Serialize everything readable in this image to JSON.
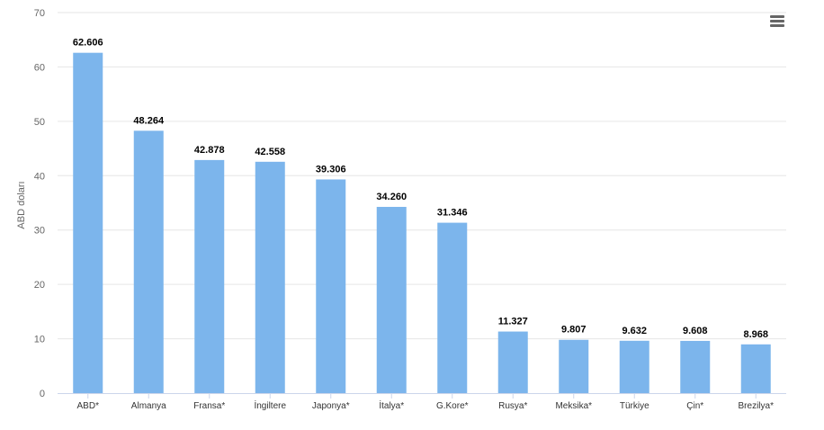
{
  "chart_data": {
    "type": "bar",
    "ylabel": "ABD doları",
    "ylim": [
      0,
      70
    ],
    "yticks": [
      0,
      10,
      20,
      30,
      40,
      50,
      60,
      70
    ],
    "grid": true,
    "bar_color": "#7cb5ec",
    "categories": [
      "ABD*",
      "Almanya",
      "Fransa*",
      "İngiltere",
      "Japonya*",
      "İtalya*",
      "G.Kore*",
      "Rusya*",
      "Meksika*",
      "Türkiye",
      "Çin*",
      "Brezilya*"
    ],
    "values": [
      62.606,
      48.264,
      42.878,
      42.558,
      39.306,
      34.26,
      31.346,
      11.327,
      9.807,
      9.632,
      9.608,
      8.968
    ],
    "data_labels": [
      "62.606",
      "48.264",
      "42.878",
      "42.558",
      "39.306",
      "34.260",
      "31.346",
      "11.327",
      "9.807",
      "9.632",
      "9.608",
      "8.968"
    ]
  },
  "menu": {
    "icon": "hamburger-menu-icon"
  }
}
